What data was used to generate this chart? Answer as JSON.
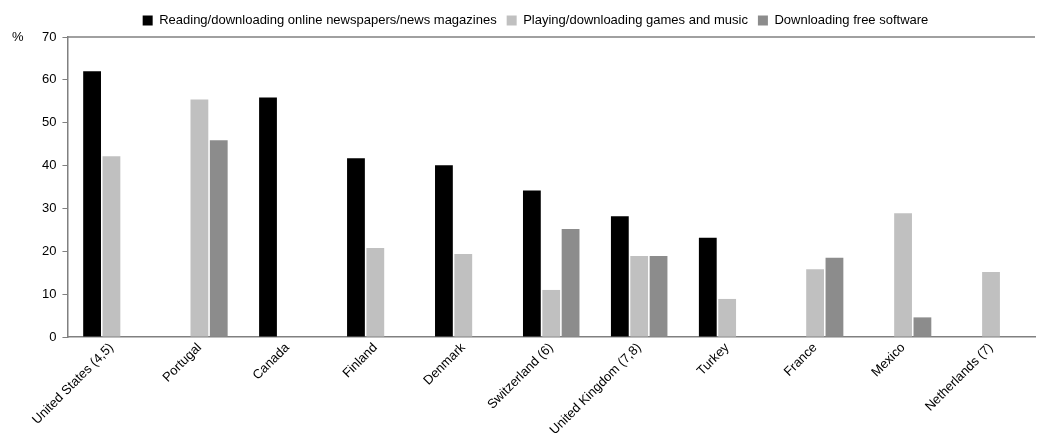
{
  "chart_data": {
    "type": "bar",
    "ylabel": "%",
    "categories": [
      "United States (4,5)",
      "Portugal",
      "Canada",
      "Finland",
      "Denmark",
      "Switzerland (6)",
      "United Kingdom (7,8)",
      "Turkey",
      "France",
      "Mexico",
      "Netherlands (7)"
    ],
    "series": [
      {
        "name": "Reading/downloading online newspapers/news magazines",
        "color": "#000000",
        "values": [
          62.0,
          null,
          55.9,
          41.7,
          40.1,
          34.2,
          28.2,
          23.2,
          null,
          null,
          null
        ]
      },
      {
        "name": "Playing/downloading games and music",
        "color": "#c0c0c0",
        "values": [
          42.2,
          55.4,
          null,
          20.8,
          19.4,
          11.0,
          18.9,
          8.9,
          15.8,
          28.9,
          15.2
        ]
      },
      {
        "name": "Downloading free software",
        "color": "#8c8c8c",
        "values": [
          null,
          45.9,
          null,
          null,
          null,
          25.2,
          18.9,
          null,
          18.5,
          4.6,
          null
        ]
      }
    ],
    "ylim": [
      0,
      70
    ],
    "yticks": [
      0,
      10,
      20,
      30,
      40,
      50,
      60,
      70
    ],
    "grid": false,
    "legend": "top"
  }
}
